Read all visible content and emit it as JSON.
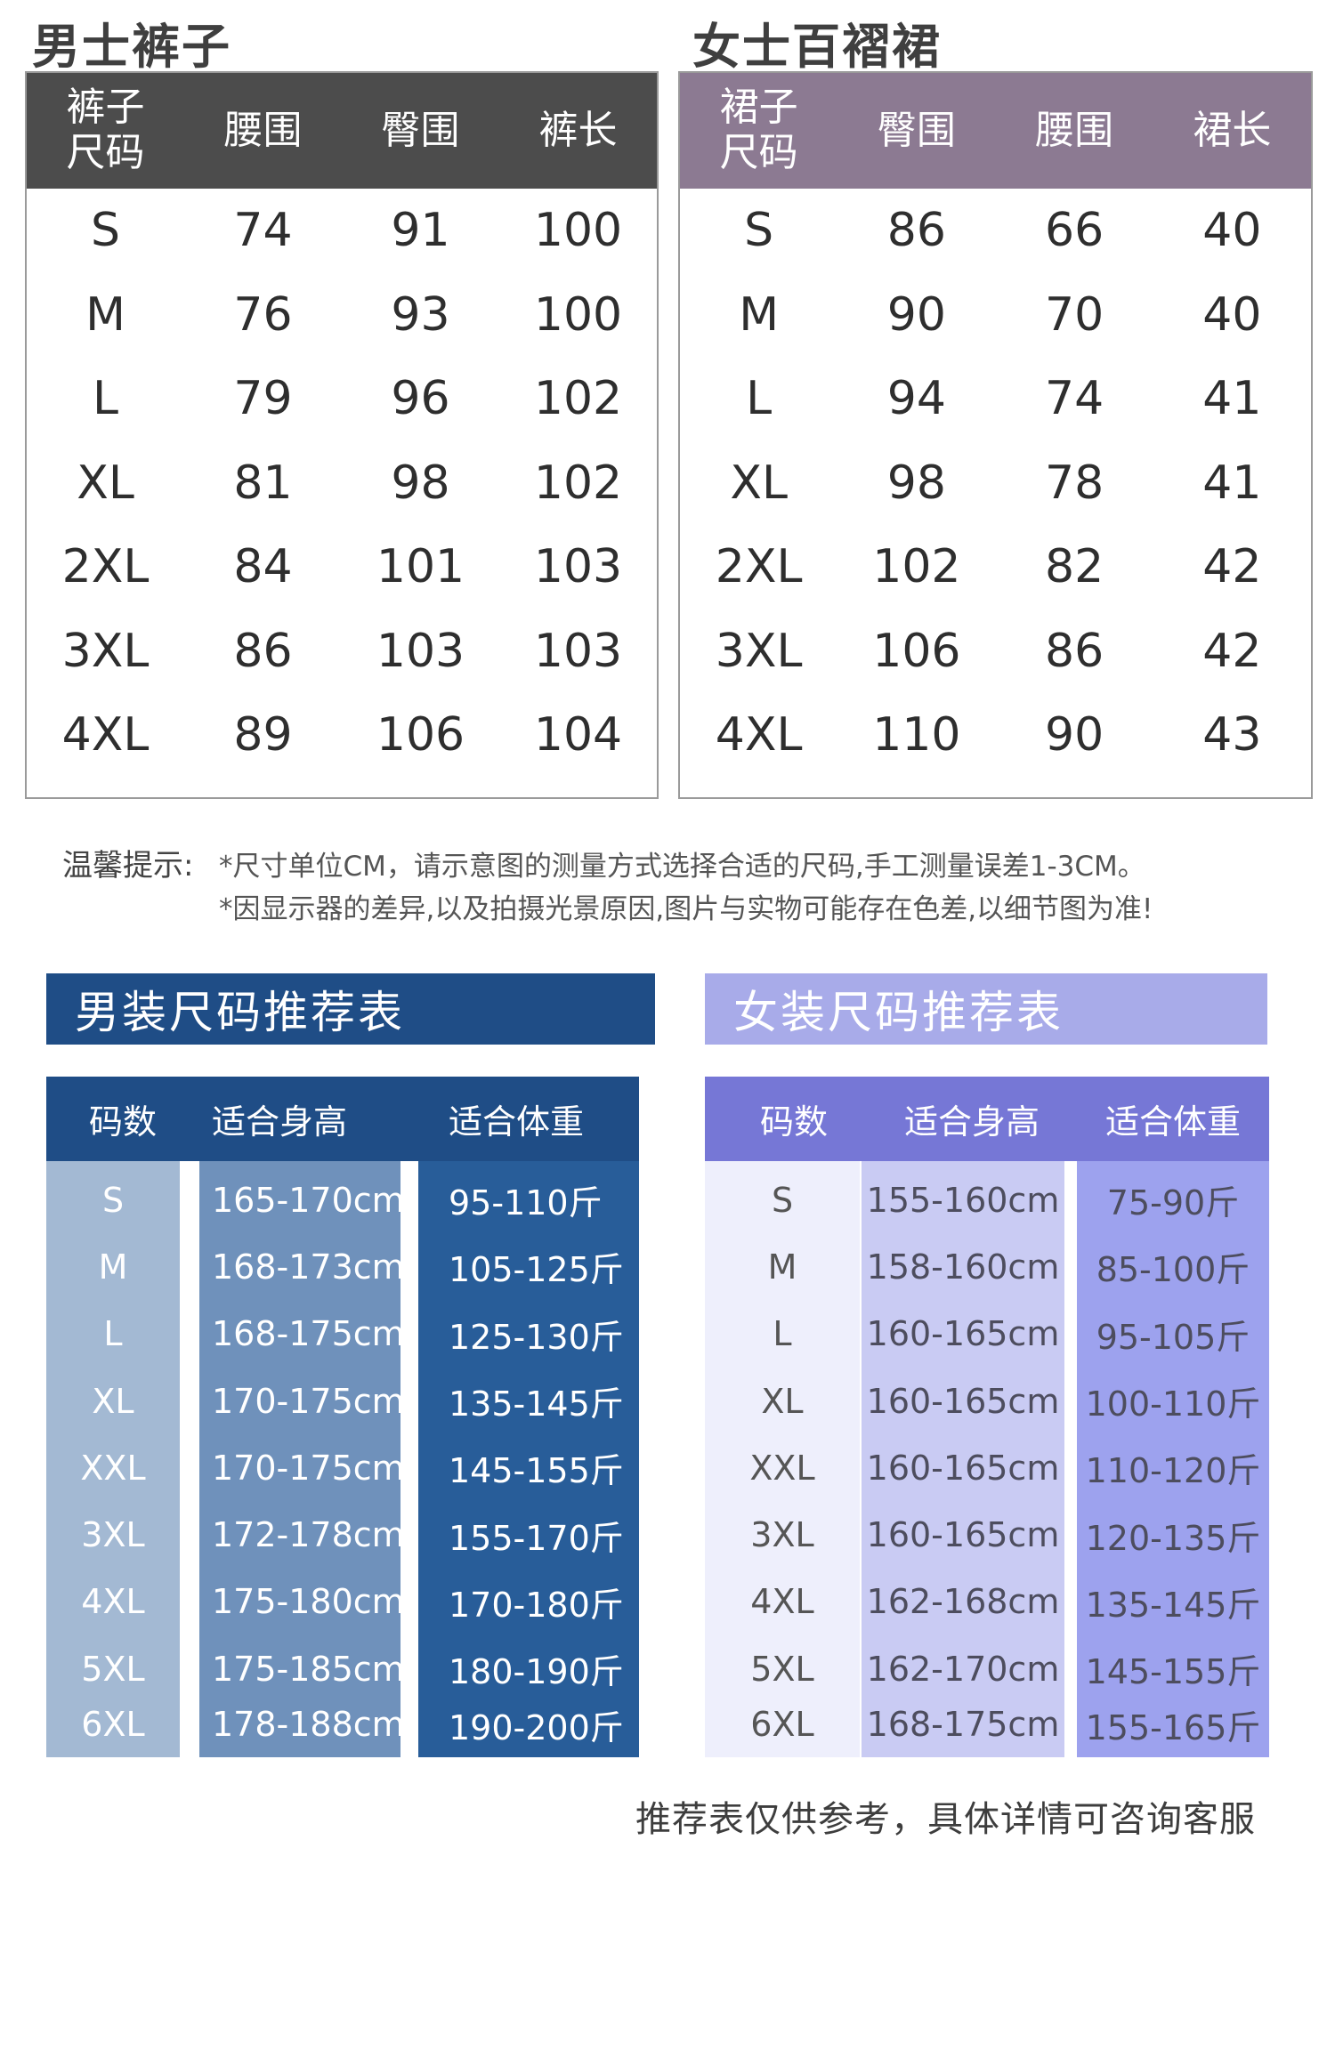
{
  "men_pants": {
    "title": "男士裤子",
    "headers": [
      "裤子\n尺码",
      "腰围",
      "臀围",
      "裤长"
    ],
    "header_first_line1": "裤子",
    "header_first_line2": "尺码",
    "rows": [
      [
        "S",
        "74",
        "91",
        "100"
      ],
      [
        "M",
        "76",
        "93",
        "100"
      ],
      [
        "L",
        "79",
        "96",
        "102"
      ],
      [
        "XL",
        "81",
        "98",
        "102"
      ],
      [
        "2XL",
        "84",
        "101",
        "103"
      ],
      [
        "3XL",
        "86",
        "103",
        "103"
      ],
      [
        "4XL",
        "89",
        "106",
        "104"
      ]
    ]
  },
  "women_skirt": {
    "title": "女士百褶裙",
    "header_first_line1": "裙子",
    "header_first_line2": "尺码",
    "headers": [
      "裙子\n尺码",
      "臀围",
      "腰围",
      "裙长"
    ],
    "rows": [
      [
        "S",
        "86",
        "66",
        "40"
      ],
      [
        "M",
        "90",
        "70",
        "40"
      ],
      [
        "L",
        "94",
        "74",
        "41"
      ],
      [
        "XL",
        "98",
        "78",
        "41"
      ],
      [
        "2XL",
        "102",
        "82",
        "42"
      ],
      [
        "3XL",
        "106",
        "86",
        "42"
      ],
      [
        "4XL",
        "110",
        "90",
        "43"
      ]
    ]
  },
  "tips": {
    "label": "温馨提示:",
    "line1": "*尺寸单位CM，请示意图的测量方式选择合适的尺码,手工测量误差1-3CM。",
    "line2": "*因显示器的差异,以及拍摄光景原因,图片与实物可能存在色差,以细节图为准!"
  },
  "men_rec": {
    "title": "男装尺码推荐表",
    "headers": [
      "码数",
      "适合身高",
      "适合体重"
    ],
    "sizes": [
      "S",
      "M",
      "L",
      "XL",
      "XXL",
      "3XL",
      "4XL",
      "5XL",
      "6XL"
    ],
    "heights": [
      "165-170cm",
      "168-173cm",
      "168-175cm",
      "170-175cm",
      "170-175cm",
      "172-178cm",
      "175-180cm",
      "175-185cm",
      "178-188cm"
    ],
    "weights": [
      "95-110斤",
      "105-125斤",
      "125-130斤",
      "135-145斤",
      "145-155斤",
      "155-170斤",
      "170-180斤",
      "180-190斤",
      "190-200斤"
    ]
  },
  "women_rec": {
    "title": "女装尺码推荐表",
    "headers": [
      "码数",
      "适合身高",
      "适合体重"
    ],
    "sizes": [
      "S",
      "M",
      "L",
      "XL",
      "XXL",
      "3XL",
      "4XL",
      "5XL",
      "6XL"
    ],
    "heights": [
      "155-160cm",
      "158-160cm",
      "160-165cm",
      "160-165cm",
      "160-165cm",
      "160-165cm",
      "162-168cm",
      "162-170cm",
      "168-175cm"
    ],
    "weights": [
      "75-90斤",
      "85-100斤",
      "95-105斤",
      "100-110斤",
      "110-120斤",
      "120-135斤",
      "135-145斤",
      "145-155斤",
      "155-165斤"
    ]
  },
  "footer_note": "推荐表仅供参考，具体详情可咨询客服",
  "colors": {
    "men_header": "#4c4c4c",
    "women_header": "#8c7a92",
    "men_rec_dark": "#1f4d86",
    "women_rec_light": "#a8abe9"
  }
}
